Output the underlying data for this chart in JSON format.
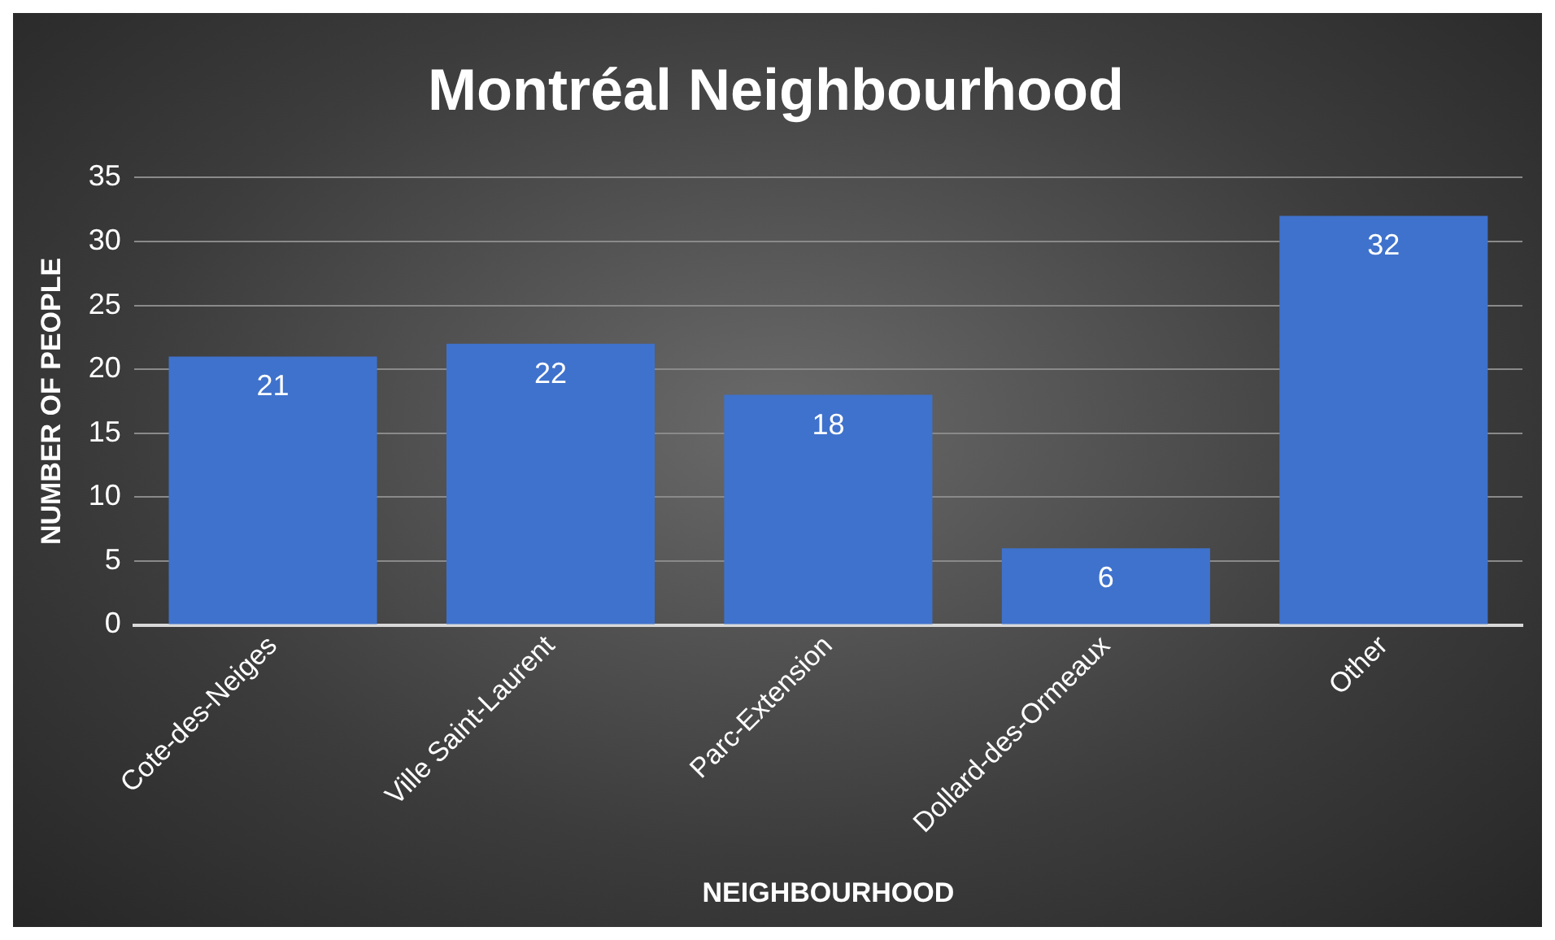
{
  "chart_data": {
    "type": "bar",
    "title": "Montréal Neighbourhood",
    "xlabel": "NEIGHBOURHOOD",
    "ylabel": "NUMBER OF PEOPLE",
    "categories": [
      "Cote-des-Neiges",
      "Ville Saint-Laurent",
      "Parc-Extension",
      "Dollard-des-Ormeaux",
      "Other"
    ],
    "values": [
      21,
      22,
      18,
      6,
      32
    ],
    "color": "#3f72cc",
    "ylim": [
      0,
      35
    ],
    "yticks": [
      0,
      5,
      10,
      15,
      20,
      25,
      30,
      35
    ],
    "grid": "y",
    "data_labels": true,
    "legend": false
  }
}
